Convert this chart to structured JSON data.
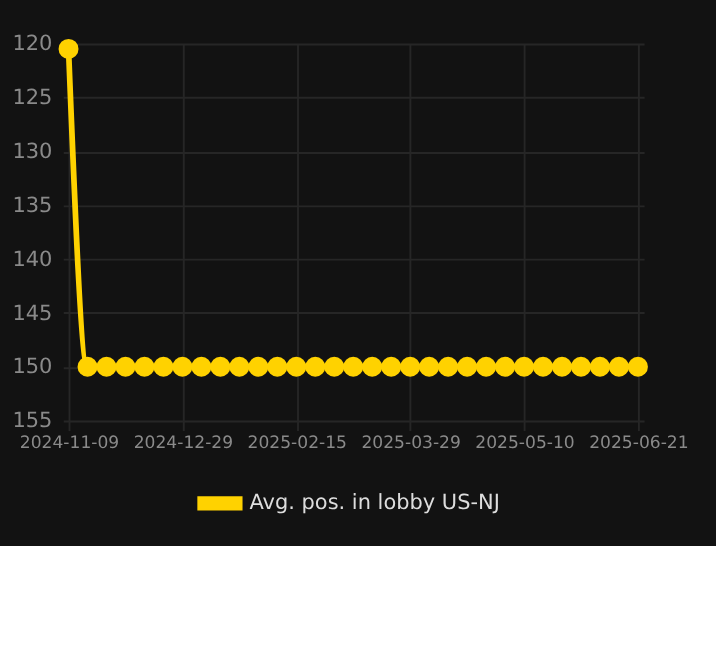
{
  "chart_data": {
    "type": "line",
    "categories": [
      "2024-11-09",
      null,
      null,
      null,
      null,
      null,
      "2024-12-29",
      null,
      null,
      null,
      null,
      null,
      "2025-02-15",
      null,
      null,
      null,
      null,
      null,
      "2025-03-29",
      null,
      null,
      null,
      null,
      null,
      "2025-05-10",
      null,
      null,
      null,
      null,
      null,
      "2025-06-21"
    ],
    "series": [
      {
        "name": "Avg. pos. in lobby US-NJ",
        "color": "#ffd200",
        "values": [
          120.5,
          150,
          150,
          150,
          150,
          150,
          150,
          150,
          150,
          150,
          150,
          150,
          150,
          150,
          150,
          150,
          150,
          150,
          150,
          150,
          150,
          150,
          150,
          150,
          150,
          150,
          150,
          150,
          150,
          150,
          150
        ]
      }
    ],
    "ylim": [
      155,
      120
    ],
    "yticks": [
      120,
      125,
      130,
      135,
      140,
      145,
      150,
      155
    ],
    "grid": true,
    "legend": "bottom",
    "marker": "circle",
    "line_style": "solid"
  }
}
